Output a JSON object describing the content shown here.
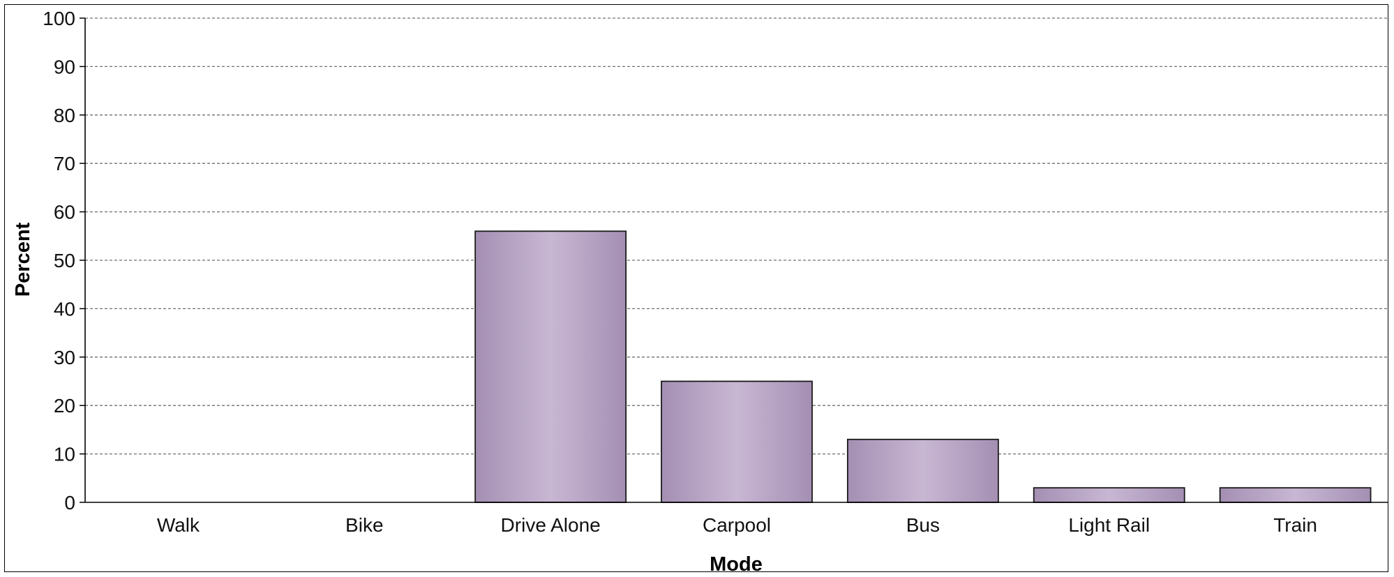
{
  "chart_data": {
    "type": "bar",
    "title": "",
    "xlabel": "Mode",
    "ylabel": "Percent",
    "categories": [
      "Walk",
      "Bike",
      "Drive Alone",
      "Carpool",
      "Bus",
      "Light Rail",
      "Train"
    ],
    "values": [
      0,
      0,
      56,
      25,
      13,
      3,
      3
    ],
    "ylim": [
      0,
      100
    ],
    "yticks": [
      0,
      10,
      20,
      30,
      40,
      50,
      60,
      70,
      80,
      90,
      100
    ],
    "grid": "horizontal dashed",
    "legend": "none",
    "colors": {
      "bar_edge": "#a48fb3",
      "bar_center": "#c8b7d3",
      "bar_border": "#1a1a1a",
      "grid": "#6f6f6f"
    }
  }
}
